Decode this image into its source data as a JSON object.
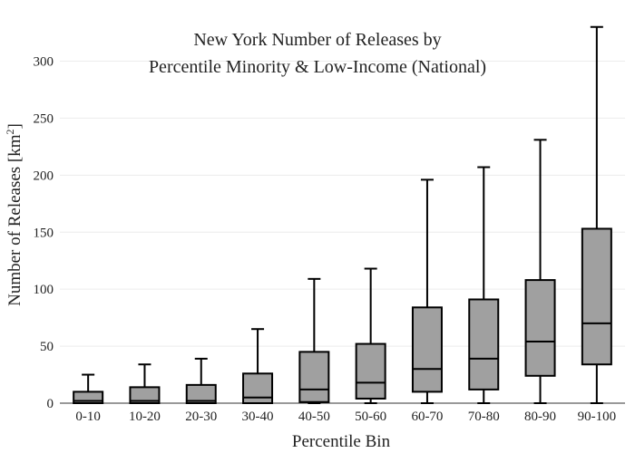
{
  "chart_data": {
    "type": "box",
    "title_lines": [
      "New York Number of Releases by",
      "Percentile Minority & Low-Income (National)"
    ],
    "xlabel": "Percentile Bin",
    "ylabel_main": "Number of Releases  [km",
    "ylabel_sup": "2",
    "ylabel_end": "]",
    "ylim": [
      0,
      332
    ],
    "yticks": [
      0,
      50,
      100,
      150,
      200,
      250,
      300
    ],
    "grid": true,
    "box_color": "#a0a0a0",
    "categories": [
      "0-10",
      "10-20",
      "20-30",
      "30-40",
      "40-50",
      "50-60",
      "60-70",
      "70-80",
      "80-90",
      "90-100"
    ],
    "boxes": [
      {
        "min": 0,
        "q1": 0,
        "median": 2,
        "q3": 10,
        "max": 25
      },
      {
        "min": 0,
        "q1": 0,
        "median": 2,
        "q3": 14,
        "max": 34
      },
      {
        "min": 0,
        "q1": 0,
        "median": 2,
        "q3": 16,
        "max": 39
      },
      {
        "min": 0,
        "q1": 0,
        "median": 5,
        "q3": 26,
        "max": 65
      },
      {
        "min": 0,
        "q1": 1,
        "median": 12,
        "q3": 45,
        "max": 109
      },
      {
        "min": 0,
        "q1": 4,
        "median": 18,
        "q3": 52,
        "max": 118
      },
      {
        "min": 0,
        "q1": 10,
        "median": 30,
        "q3": 84,
        "max": 196
      },
      {
        "min": 0,
        "q1": 12,
        "median": 39,
        "q3": 91,
        "max": 207
      },
      {
        "min": 0,
        "q1": 24,
        "median": 54,
        "q3": 108,
        "max": 231
      },
      {
        "min": 0,
        "q1": 34,
        "median": 70,
        "q3": 153,
        "max": 330
      }
    ]
  }
}
